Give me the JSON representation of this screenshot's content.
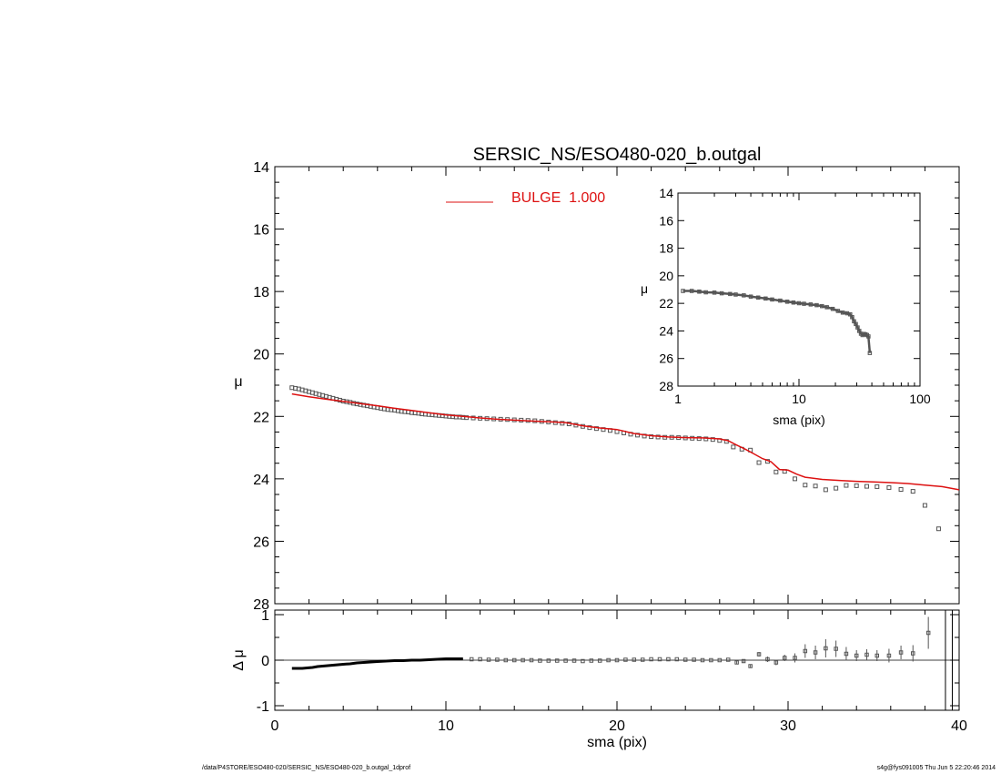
{
  "chart_data": [
    {
      "id": "main",
      "type": "scatter",
      "title": "SERSIC_NS/ESO480-020_b.outgal",
      "xlabel": "",
      "ylabel": "μ",
      "xlim": [
        0,
        40
      ],
      "ylim": [
        28,
        14
      ],
      "y_inverted": true,
      "yticks": [
        14,
        16,
        18,
        20,
        22,
        24,
        26,
        28
      ],
      "xticks": [
        0,
        10,
        20,
        30,
        40
      ],
      "grid": false,
      "legend": {
        "placement": "top-center",
        "entries": [
          {
            "name": "BULGE  1.000",
            "color": "#dd1111"
          }
        ]
      },
      "series": [
        {
          "name": "data",
          "marker": "square",
          "color": "#555555",
          "dense_x": [
            1.0,
            1.2,
            1.4,
            1.6,
            1.8,
            2.0,
            2.2,
            2.4,
            2.6,
            2.8,
            3.0,
            3.2,
            3.4,
            3.6,
            3.8,
            4.0,
            4.2,
            4.4,
            4.6,
            4.8,
            5.0,
            5.2,
            5.4,
            5.6,
            5.8,
            6.0,
            6.2,
            6.4,
            6.6,
            6.8,
            7.0,
            7.2,
            7.4,
            7.6,
            7.8,
            8.0,
            8.2,
            8.4,
            8.6,
            8.8,
            9.0,
            9.2,
            9.4,
            9.6,
            9.8,
            10.0,
            10.2,
            10.4,
            10.6,
            10.8,
            11.0
          ],
          "dense_y": [
            21.08,
            21.1,
            21.12,
            21.15,
            21.18,
            21.21,
            21.24,
            21.27,
            21.3,
            21.33,
            21.36,
            21.39,
            21.42,
            21.45,
            21.48,
            21.51,
            21.53,
            21.55,
            21.58,
            21.6,
            21.62,
            21.64,
            21.66,
            21.68,
            21.7,
            21.72,
            21.74,
            21.76,
            21.78,
            21.79,
            21.8,
            21.82,
            21.84,
            21.85,
            21.86,
            21.88,
            21.89,
            21.9,
            21.92,
            21.93,
            21.94,
            21.95,
            21.96,
            21.97,
            21.98,
            21.99,
            22.0,
            22.01,
            22.02,
            22.02,
            22.03
          ],
          "sparse_x": [
            11.2,
            11.6,
            12.0,
            12.4,
            12.8,
            13.2,
            13.6,
            14.0,
            14.4,
            14.8,
            15.2,
            15.6,
            16.0,
            16.4,
            16.8,
            17.2,
            17.6,
            18.0,
            18.4,
            18.8,
            19.2,
            19.6,
            20.0,
            20.4,
            20.8,
            21.2,
            21.6,
            22.0,
            22.4,
            22.8,
            23.2,
            23.6,
            24.0,
            24.4,
            24.8,
            25.2,
            25.6,
            26.0,
            26.4,
            26.8,
            27.3,
            27.8,
            28.3,
            28.8,
            29.3,
            29.8,
            30.4,
            31.0,
            31.6,
            32.2,
            32.8,
            33.4,
            34.0,
            34.6,
            35.2,
            35.9,
            36.6,
            37.3,
            38.0,
            38.8
          ],
          "sparse_y": [
            22.04,
            22.05,
            22.06,
            22.07,
            22.08,
            22.09,
            22.1,
            22.11,
            22.12,
            22.13,
            22.14,
            22.16,
            22.18,
            22.2,
            22.22,
            22.24,
            22.28,
            22.32,
            22.36,
            22.39,
            22.42,
            22.45,
            22.49,
            22.53,
            22.57,
            22.6,
            22.63,
            22.65,
            22.66,
            22.67,
            22.67,
            22.68,
            22.69,
            22.7,
            22.71,
            22.72,
            22.74,
            22.77,
            22.8,
            22.98,
            23.05,
            23.08,
            23.48,
            23.44,
            23.78,
            23.76,
            24.0,
            24.2,
            24.23,
            24.35,
            24.3,
            24.21,
            24.22,
            24.24,
            24.25,
            24.28,
            24.34,
            24.4,
            24.85,
            25.6
          ]
        },
        {
          "name": "BULGE  1.000",
          "type": "line",
          "color": "#dd1111",
          "x": [
            1.0,
            2.0,
            3.0,
            4.0,
            5.0,
            6.0,
            7.0,
            8.0,
            9.0,
            10.0,
            11.0,
            12.0,
            13.0,
            14.0,
            15.0,
            16.0,
            17.0,
            18.0,
            19.0,
            20.0,
            21.0,
            22.0,
            23.0,
            24.0,
            25.0,
            26.0,
            26.5,
            27.0,
            27.5,
            28.0,
            28.5,
            29.0,
            29.5,
            30.0,
            30.5,
            31.0,
            32.0,
            33.0,
            34.0,
            35.0,
            36.0,
            37.0,
            38.0,
            39.0,
            40.0
          ],
          "y": [
            21.28,
            21.37,
            21.45,
            21.52,
            21.59,
            21.66,
            21.74,
            21.81,
            21.88,
            21.95,
            22.0,
            22.05,
            22.09,
            22.12,
            22.15,
            22.17,
            22.2,
            22.3,
            22.37,
            22.42,
            22.55,
            22.62,
            22.66,
            22.68,
            22.69,
            22.72,
            22.78,
            22.92,
            23.05,
            23.2,
            23.35,
            23.45,
            23.7,
            23.72,
            23.85,
            23.95,
            24.02,
            24.05,
            24.08,
            24.1,
            24.12,
            24.15,
            24.2,
            24.25,
            24.35
          ]
        }
      ]
    },
    {
      "id": "inset",
      "type": "scatter",
      "xlabel": "sma (pix)",
      "ylabel": "μ",
      "xscale": "log",
      "xlim": [
        1,
        100
      ],
      "xticks": [
        1,
        10,
        100
      ],
      "ylim": [
        28,
        14
      ],
      "y_inverted": true,
      "yticks": [
        14,
        16,
        18,
        20,
        22,
        24,
        26,
        28
      ],
      "series": [
        {
          "name": "data",
          "marker": "square",
          "color": "#555555",
          "x": [
            1.1,
            1.3,
            1.5,
            1.7,
            2.0,
            2.3,
            2.7,
            3.0,
            3.5,
            4.0,
            4.6,
            5.3,
            6.0,
            7.0,
            8.0,
            9.0,
            10.0,
            11.0,
            12.5,
            14.0,
            15.5,
            17.0,
            19.0,
            21.0,
            23.0,
            25.0,
            26.5,
            27.5,
            28.5,
            29.5,
            30.5,
            31.5,
            32.5,
            33.5,
            34.5,
            35.5,
            36.5,
            37.5,
            38.5
          ],
          "y": [
            21.1,
            21.1,
            21.15,
            21.2,
            21.22,
            21.27,
            21.32,
            21.36,
            21.42,
            21.51,
            21.58,
            21.65,
            21.72,
            21.8,
            21.88,
            21.94,
            21.99,
            22.03,
            22.08,
            22.13,
            22.2,
            22.28,
            22.4,
            22.55,
            22.67,
            22.72,
            22.8,
            23.0,
            23.3,
            23.5,
            23.75,
            24.0,
            24.2,
            24.3,
            24.22,
            24.25,
            24.3,
            24.4,
            25.6
          ]
        }
      ]
    },
    {
      "id": "residual",
      "type": "scatter",
      "xlabel": "sma (pix)",
      "ylabel": "Δ μ",
      "xlim": [
        0,
        40
      ],
      "xticks": [
        0,
        10,
        20,
        30,
        40
      ],
      "ylim": [
        -1.1,
        1.1
      ],
      "yticks": [
        -1,
        0,
        1
      ],
      "series": [
        {
          "name": "residual",
          "marker": "square",
          "color": "#555555",
          "dense_x": [
            1.0,
            1.3,
            1.6,
            1.9,
            2.2,
            2.5,
            2.8,
            3.1,
            3.4,
            3.7,
            4.0,
            4.4,
            4.8,
            5.2,
            5.6,
            6.0,
            6.5,
            7.0,
            7.5,
            8.0,
            8.5,
            9.0,
            9.5,
            10.0,
            10.5,
            11.0
          ],
          "dense_y": [
            -0.18,
            -0.18,
            -0.18,
            -0.17,
            -0.16,
            -0.14,
            -0.13,
            -0.12,
            -0.11,
            -0.1,
            -0.09,
            -0.08,
            -0.06,
            -0.05,
            -0.04,
            -0.03,
            -0.02,
            -0.01,
            -0.01,
            0.0,
            0.0,
            0.01,
            0.02,
            0.03,
            0.03,
            0.03
          ],
          "x": [
            11.5,
            12.0,
            12.5,
            13.0,
            13.5,
            14.0,
            14.5,
            15.0,
            15.5,
            16.0,
            16.5,
            17.0,
            17.5,
            18.0,
            18.5,
            19.0,
            19.5,
            20.0,
            20.5,
            21.0,
            21.5,
            22.0,
            22.5,
            23.0,
            23.5,
            24.0,
            24.5,
            25.0,
            25.5,
            26.0,
            26.5,
            27.0,
            27.4,
            27.8,
            28.3,
            28.8,
            29.3,
            29.8,
            30.4,
            31.0,
            31.6,
            32.2,
            32.8,
            33.4,
            34.0,
            34.6,
            35.2,
            35.9,
            36.6,
            37.3,
            38.2
          ],
          "y": [
            0.02,
            0.02,
            0.01,
            0.01,
            0.0,
            0.0,
            0.0,
            0.0,
            -0.01,
            -0.01,
            -0.01,
            -0.01,
            -0.01,
            -0.02,
            -0.01,
            -0.01,
            0.0,
            0.0,
            0.01,
            0.01,
            0.01,
            0.02,
            0.02,
            0.02,
            0.02,
            0.01,
            0.01,
            0.0,
            0.0,
            0.0,
            0.01,
            -0.05,
            -0.02,
            -0.13,
            0.13,
            0.02,
            -0.05,
            0.05,
            0.05,
            0.2,
            0.17,
            0.26,
            0.25,
            0.14,
            0.1,
            0.12,
            0.1,
            0.1,
            0.17,
            0.15,
            0.6
          ],
          "err": [
            0.01,
            0.01,
            0.01,
            0.01,
            0.01,
            0.01,
            0.01,
            0.01,
            0.01,
            0.01,
            0.01,
            0.01,
            0.01,
            0.01,
            0.01,
            0.01,
            0.01,
            0.01,
            0.01,
            0.01,
            0.01,
            0.01,
            0.01,
            0.01,
            0.01,
            0.02,
            0.02,
            0.02,
            0.02,
            0.02,
            0.02,
            0.03,
            0.03,
            0.04,
            0.05,
            0.06,
            0.06,
            0.07,
            0.1,
            0.15,
            0.15,
            0.2,
            0.18,
            0.15,
            0.12,
            0.12,
            0.12,
            0.15,
            0.15,
            0.18,
            0.35
          ],
          "vlines_x": [
            39.2,
            39.6
          ]
        }
      ]
    }
  ],
  "footer": {
    "left": "/data/P4STORE/ESO480-020/SERSIC_NS/ESO480-020_b.outgal_1dprof",
    "right": "s4g@fys091005  Thu Jun  5 22:20:46 2014"
  }
}
